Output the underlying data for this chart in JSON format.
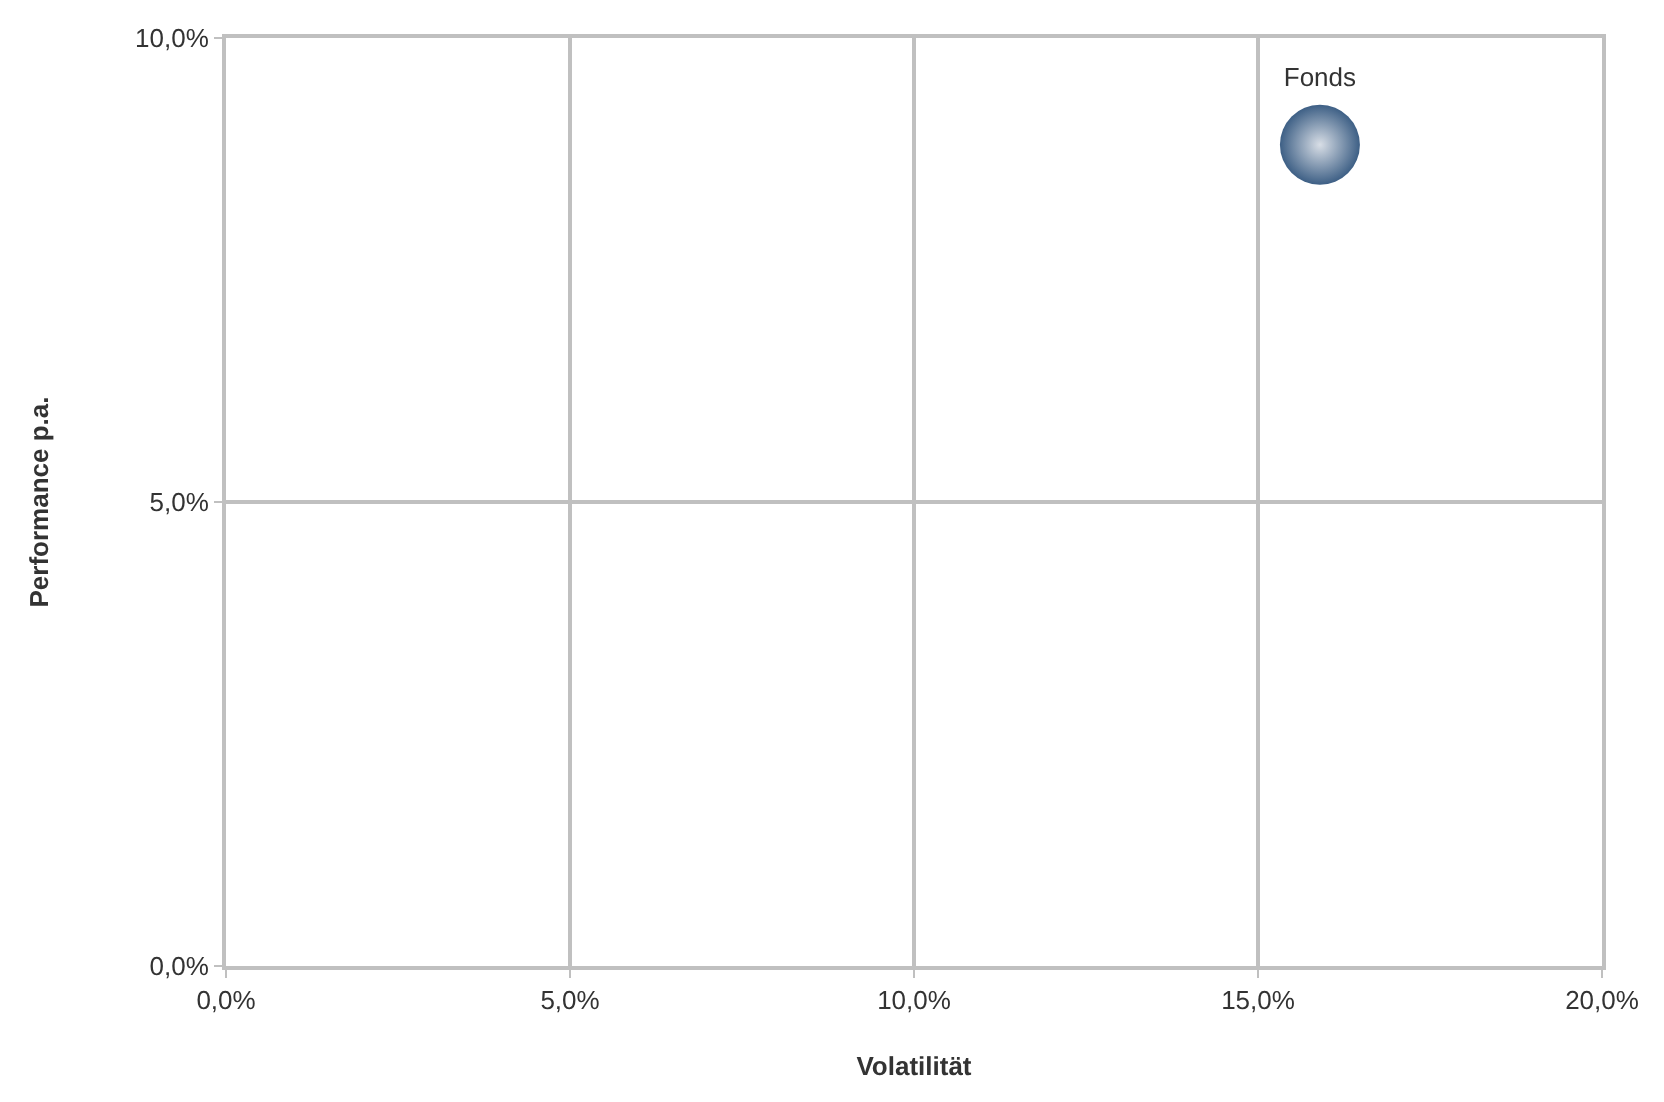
{
  "chart_data": {
    "type": "scatter",
    "xlabel": "Volatilität",
    "ylabel": "Performance p.a.",
    "series": [
      {
        "name": "Fonds",
        "color": "#3d5f85",
        "x": [
          15.9
        ],
        "values": [
          8.85
        ]
      }
    ],
    "xlim": [
      0,
      20
    ],
    "ylim": [
      0,
      10
    ],
    "xticks": [
      {
        "value": 0,
        "label": "0,0%"
      },
      {
        "value": 5,
        "label": "5,0%"
      },
      {
        "value": 10,
        "label": "10,0%"
      },
      {
        "value": 15,
        "label": "15,0%"
      },
      {
        "value": 20,
        "label": "20,0%"
      }
    ],
    "yticks": [
      {
        "value": 0,
        "label": "0,0%"
      },
      {
        "value": 5,
        "label": "5,0%"
      },
      {
        "value": 10,
        "label": "10,0%"
      }
    ],
    "grid": true,
    "legend": false,
    "marker": "circle"
  }
}
